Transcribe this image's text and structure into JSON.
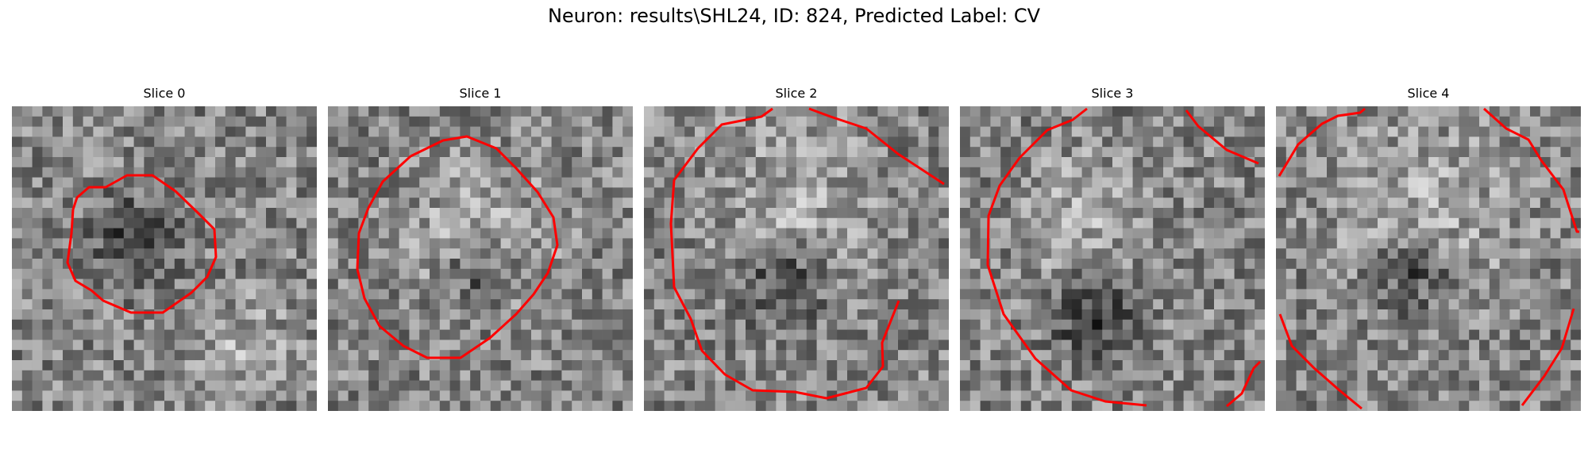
{
  "figure": {
    "title": "Neuron: results\\SHL24, ID: 824, Predicted Label: CV",
    "outline_color": "#ff0000"
  },
  "slices": [
    {
      "title": "Slice 0"
    },
    {
      "title": "Slice 1"
    },
    {
      "title": "Slice 2"
    },
    {
      "title": "Slice 3"
    },
    {
      "title": "Slice 4"
    }
  ]
}
